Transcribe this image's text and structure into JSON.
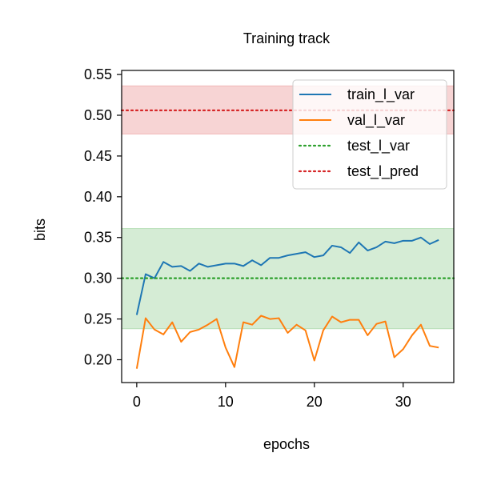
{
  "chart_data": {
    "type": "line",
    "title": "Training track",
    "xlabel": "epochs",
    "ylabel": "bits",
    "xlim": [
      -1.7,
      35.7
    ],
    "ylim": [
      0.172,
      0.555
    ],
    "xticks": [
      0,
      10,
      20,
      30
    ],
    "xtick_labels": [
      "0",
      "10",
      "20",
      "30"
    ],
    "yticks": [
      0.2,
      0.25,
      0.3,
      0.35,
      0.4,
      0.45,
      0.5,
      0.55
    ],
    "ytick_labels": [
      "0.20",
      "0.25",
      "0.30",
      "0.35",
      "0.40",
      "0.45",
      "0.50",
      "0.55"
    ],
    "legend_position": "top-right",
    "x": [
      0,
      1,
      2,
      3,
      4,
      5,
      6,
      7,
      8,
      9,
      10,
      11,
      12,
      13,
      14,
      15,
      16,
      17,
      18,
      19,
      20,
      21,
      22,
      23,
      24,
      25,
      26,
      27,
      28,
      29,
      30,
      31,
      32,
      33,
      34
    ],
    "series": [
      {
        "name": "train_l_var",
        "color": "#1f77b4",
        "style": "solid",
        "values": [
          0.255,
          0.305,
          0.3,
          0.32,
          0.314,
          0.315,
          0.309,
          0.318,
          0.314,
          0.316,
          0.318,
          0.318,
          0.315,
          0.322,
          0.316,
          0.325,
          0.325,
          0.328,
          0.33,
          0.332,
          0.326,
          0.328,
          0.34,
          0.338,
          0.331,
          0.344,
          0.334,
          0.338,
          0.345,
          0.343,
          0.346,
          0.346,
          0.35,
          0.342,
          0.347
        ]
      },
      {
        "name": "val_l_var",
        "color": "#ff7f0e",
        "style": "solid",
        "values": [
          0.189,
          0.251,
          0.237,
          0.231,
          0.246,
          0.222,
          0.234,
          0.237,
          0.243,
          0.25,
          0.215,
          0.191,
          0.246,
          0.243,
          0.254,
          0.25,
          0.251,
          0.233,
          0.243,
          0.236,
          0.199,
          0.236,
          0.253,
          0.246,
          0.249,
          0.249,
          0.23,
          0.244,
          0.247,
          0.203,
          0.213,
          0.23,
          0.243,
          0.217,
          0.215
        ]
      },
      {
        "name": "test_l_var",
        "color": "#2ca02c",
        "style": "dotted",
        "constant": 0.3,
        "band": [
          0.238,
          0.361
        ],
        "band_color": "#2ca02c"
      },
      {
        "name": "test_l_pred",
        "color": "#d62728",
        "style": "dotted",
        "constant": 0.506,
        "band": [
          0.477,
          0.536
        ],
        "band_color": "#d62728"
      }
    ]
  }
}
